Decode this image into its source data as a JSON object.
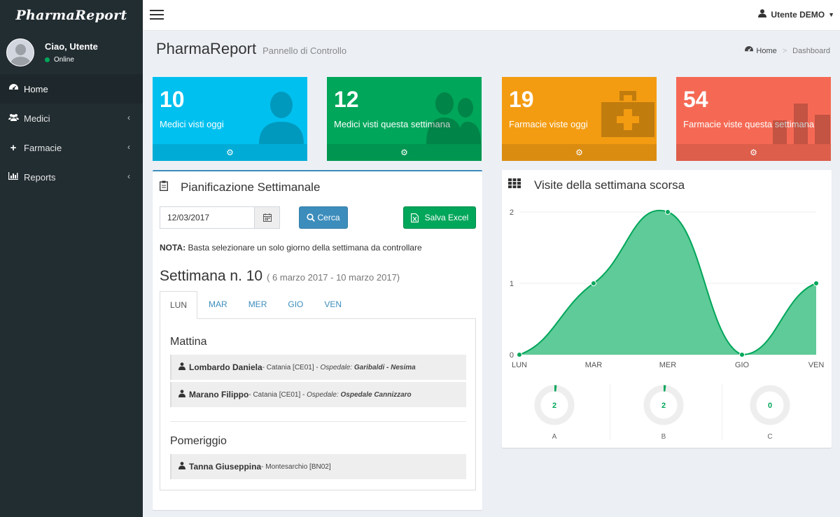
{
  "app": {
    "logo": "PharmaReport"
  },
  "sidebar": {
    "greeting": "Ciao, Utente",
    "status": "Online",
    "items": [
      {
        "label": "Home",
        "icon": "dashboard-icon",
        "active": true
      },
      {
        "label": "Medici",
        "icon": "users-icon",
        "active": false
      },
      {
        "label": "Farmacie",
        "icon": "plus-icon",
        "active": false
      },
      {
        "label": "Reports",
        "icon": "bar-chart-icon",
        "active": false
      }
    ]
  },
  "header": {
    "user": "Utente DEMO"
  },
  "page": {
    "title": "PharmaReport",
    "subtitle": "Pannello di Controllo",
    "breadcrumb_home": "Home",
    "breadcrumb_current": "Dashboard"
  },
  "stats": [
    {
      "value": "10",
      "label": "Medici visti oggi",
      "color": "#00c0ef"
    },
    {
      "value": "12",
      "label": "Medici visti questa settimana",
      "color": "#00a65a"
    },
    {
      "value": "19",
      "label": "Farmacie viste oggi",
      "color": "#f39c12"
    },
    {
      "value": "54",
      "label": "Farmacie viste questa settimana",
      "color": "#f56954"
    }
  ],
  "planner": {
    "title": "Pianificazione Settimanale",
    "date_value": "12/03/2017",
    "search_label": "Cerca",
    "excel_label": "Salva Excel",
    "nota_label": "NOTA:",
    "nota_text": " Basta selezionare un solo giorno della settimana da controllare",
    "week_title": "Settimana n. 10",
    "week_range": "( 6 marzo 2017 - 10 marzo 2017)",
    "tabs": [
      "LUN",
      "MAR",
      "MER",
      "GIO",
      "VEN"
    ],
    "mattina_title": "Mattina",
    "pomeriggio_title": "Pomeriggio",
    "mattina": [
      {
        "name": "Lombardo Daniela",
        "place": " - Catania [CE01] - ",
        "hosp_label": "Ospedale:",
        "hosp": "Garibaldi - Nesima"
      },
      {
        "name": "Marano Filippo",
        "place": " - Catania [CE01] - ",
        "hosp_label": "Ospedale:",
        "hosp": "Ospedale Cannizzaro"
      }
    ],
    "pomeriggio": [
      {
        "name": "Tanna Giuseppina",
        "place": " - Montesarchio [BN02]"
      }
    ]
  },
  "visits": {
    "title": "Visite della settimana scorsa"
  },
  "chart_data": {
    "type": "area",
    "categories": [
      "LUN",
      "MAR",
      "MER",
      "GIO",
      "VEN"
    ],
    "values": [
      0,
      1,
      2,
      0,
      1
    ],
    "ylim": [
      0,
      2
    ],
    "yticks": [
      "0",
      "1",
      "2"
    ],
    "color": "#00a65a",
    "fill": "#5fcb98",
    "grid": true,
    "knobs": [
      {
        "label": "A",
        "value": 2
      },
      {
        "label": "B",
        "value": 2
      },
      {
        "label": "C",
        "value": 0
      }
    ]
  }
}
